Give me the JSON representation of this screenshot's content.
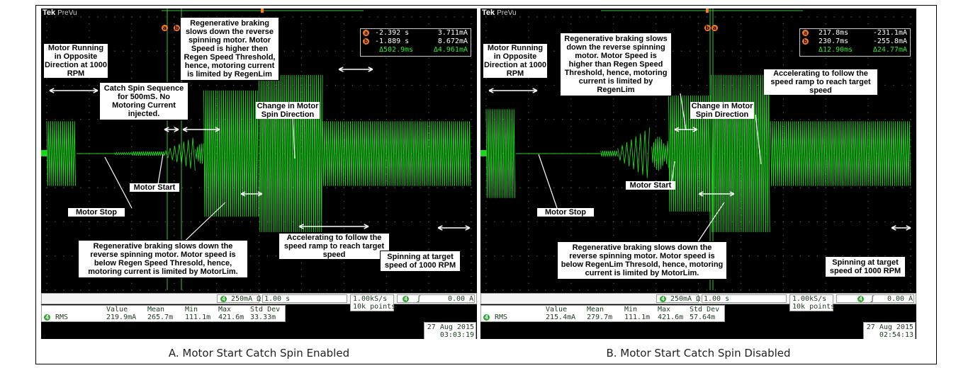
{
  "captions": {
    "left": "A. Motor Start Catch Spin Enabled",
    "right": "B. Motor Start Catch Spin Disabled"
  },
  "colors": {
    "trace": "#1fd41f",
    "cursor_line": "#34c834",
    "background": "#000000",
    "marker": "#ff7a1a",
    "grid": "#5a5a5a"
  },
  "panels": [
    {
      "id": "a",
      "title": "Tek",
      "subtitle": "PreVu",
      "cursor_a_label": "a",
      "cursor_b_label": "b",
      "readout": {
        "a_time": "-2.392 s",
        "a_value": "3.711mA",
        "b_time": "-1.889 s",
        "b_value": "8.672mA",
        "delta_time": "Δ502.9ms",
        "delta_value": "Δ4.961mA"
      },
      "annotations": {
        "opposite": "Motor Running in Opposite Direction at 1000 RPM",
        "catch": "Catch Spin Sequence for 500mS. No Motoring Current injected.",
        "regen_top": "Regenerative braking slows down the reverse spinning motor. Motor Speed is higher then Regen Speed Threshold, hence, motoring current is limited by RegenLim",
        "change": "Change in Motor Spin Direction",
        "start": "Motor Start",
        "stop": "Motor Stop",
        "regen_bottom": "Regenerative braking slows down the reverse spinning motor. Motor speed is below Regen Speed Thresold, hence, motoring current is limited by MotorLim.",
        "accel": "Accelerating to follow the speed ramp to reach target speed",
        "target": "Spinning at target speed of 1000 RPM"
      },
      "status": {
        "ch": "4",
        "scale": "250mA Ω",
        "timebase": "1.00 s",
        "rate": "1.00kS/s",
        "points": "10k points",
        "trig_ch": "4",
        "trig_slope": "ʃ",
        "trig_level": "0.00 A",
        "meas_label": "RMS",
        "headers": [
          "Value",
          "Mean",
          "Min",
          "Max",
          "Std Dev"
        ],
        "values": [
          "219.9mA",
          "265.7m",
          "111.1m",
          "421.6m",
          "33.33m"
        ],
        "date": "27 Aug 2015",
        "time": "03:03:19"
      }
    },
    {
      "id": "b",
      "title": "Tek",
      "subtitle": "PreVu",
      "cursor_a_label": "a",
      "cursor_b_label": "b",
      "readout": {
        "a_time": "217.8ms",
        "a_value": "-231.1mA",
        "b_time": "230.7ms",
        "b_value": "-255.8mA",
        "delta_time": "Δ12.90ms",
        "delta_value": "Δ24.77mA"
      },
      "annotations": {
        "opposite": "Motor Running in Opposite Direction at 1000 RPM",
        "regen_top": "Regenerative braking slows down the reverse spinning motor. Motor Speed is higher than Regen Speed Threshold, hence, motoring current is limited by RegenLim",
        "accel": "Accelerating to follow the speed ramp to reach target speed",
        "change": "Change in Motor Spin Direction",
        "start": "Motor Start",
        "stop": "Motor Stop",
        "regen_bottom": "Regenerative braking slows down the reverse spinning motor. Motor speed is below RegenLim Thresold, hence, motoring current is limited by MotorLim.",
        "target": "Spinning at target speed of 1000 RPM"
      },
      "status": {
        "ch": "4",
        "scale": "250mA Ω",
        "timebase": "1.00 s",
        "rate": "1.00kS/s",
        "points": "10k points",
        "trig_ch": "4",
        "trig_slope": "ʃ",
        "trig_level": "0.00 A",
        "meas_label": "RMS",
        "headers": [
          "Value",
          "Mean",
          "Min",
          "Max",
          "Std Dev"
        ],
        "values": [
          "215.4mA",
          "279.7m",
          "111.1m",
          "421.6m",
          "57.64m"
        ],
        "date": "27 Aug 2015",
        "time": "02:54:13"
      }
    }
  ],
  "chart_data": [
    {
      "type": "line",
      "title": "",
      "timebase_per_div": "1.00 s",
      "vertical_scale_per_div": "250mA",
      "series": [
        {
          "segments": [
            {
              "t_div": [
                0.0,
                0.7
              ],
              "envelope": 0.95,
              "shape": "dense"
            },
            {
              "t_div": [
                0.7,
                1.6
              ],
              "envelope": 0.0,
              "shape": "flat"
            },
            {
              "t_div": [
                1.6,
                2.0
              ],
              "envelope": 0.03,
              "shape": "dense"
            },
            {
              "t_div": [
                2.0,
                2.8
              ],
              "envelope": 0.06,
              "shape": "dense"
            },
            {
              "t_div": [
                2.8,
                3.5
              ],
              "envelope": 0.5,
              "shape": "growing"
            },
            {
              "t_div": [
                3.5,
                3.7
              ],
              "envelope": 0.3,
              "shape": "dip"
            },
            {
              "t_div": [
                3.7,
                5.0
              ],
              "envelope": 1.85,
              "shape": "dense"
            },
            {
              "t_div": [
                5.0,
                6.5
              ],
              "envelope": 2.3,
              "shape": "dense"
            },
            {
              "t_div": [
                6.5,
                10.0
              ],
              "envelope": 0.95,
              "shape": "dense"
            }
          ]
        }
      ]
    },
    {
      "type": "line",
      "title": "",
      "timebase_per_div": "1.00 s",
      "vertical_scale_per_div": "250mA",
      "series": [
        {
          "segments": [
            {
              "t_div": [
                0.0,
                0.7
              ],
              "envelope": 1.3,
              "shape": "dense"
            },
            {
              "t_div": [
                0.7,
                2.7
              ],
              "envelope": 0.0,
              "shape": "flat"
            },
            {
              "t_div": [
                2.7,
                3.1
              ],
              "envelope": 0.08,
              "shape": "dense"
            },
            {
              "t_div": [
                3.1,
                3.9
              ],
              "envelope": 0.8,
              "shape": "growing"
            },
            {
              "t_div": [
                3.9,
                4.3
              ],
              "envelope": 0.5,
              "shape": "dip"
            },
            {
              "t_div": [
                4.3,
                5.3
              ],
              "envelope": 1.7,
              "shape": "dense"
            },
            {
              "t_div": [
                5.3,
                6.7
              ],
              "envelope": 2.3,
              "shape": "dense"
            },
            {
              "t_div": [
                6.7,
                10.0
              ],
              "envelope": 0.95,
              "shape": "dense"
            }
          ]
        }
      ]
    }
  ]
}
